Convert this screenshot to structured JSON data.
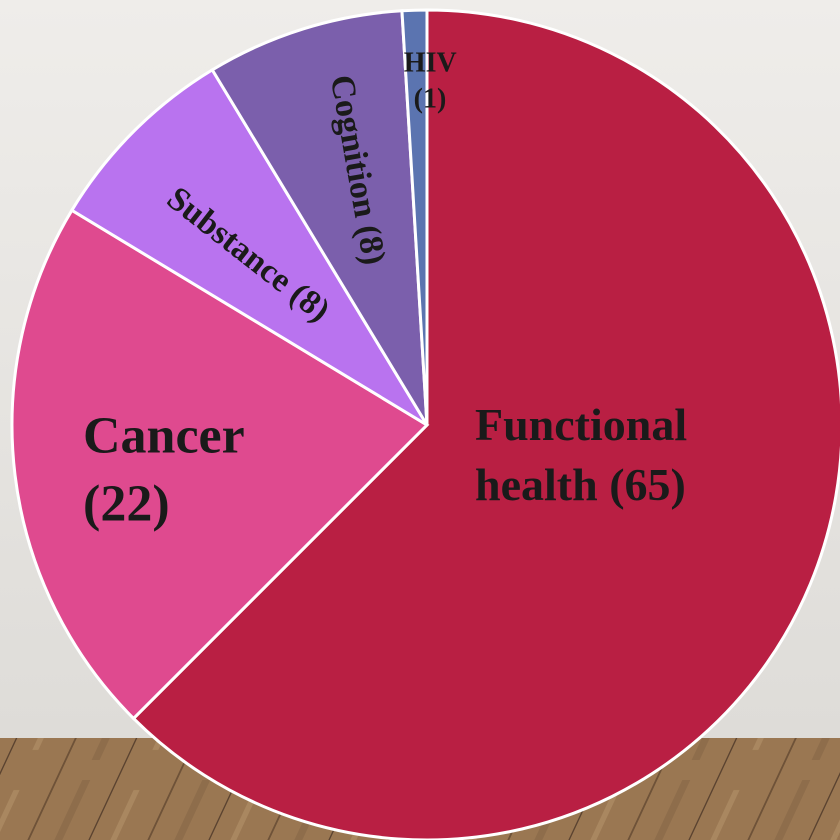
{
  "chart_data": {
    "type": "pie",
    "categories": [
      "Functional health",
      "Cancer",
      "Substance",
      "Cognition",
      "HIV"
    ],
    "values": [
      65,
      22,
      8,
      8,
      1
    ],
    "value_labels": [
      "(65)",
      "(22)",
      "(8)",
      "(8)",
      "(1)"
    ],
    "colors": [
      "#b91f43",
      "#df4a8f",
      "#b973ef",
      "#7b5fac",
      "#5b74b0"
    ]
  }
}
